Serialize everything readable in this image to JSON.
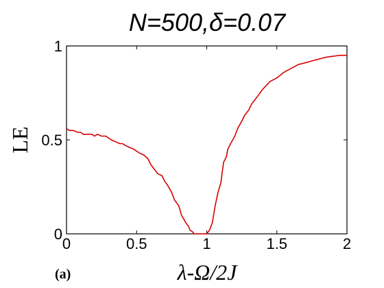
{
  "chart_data": {
    "type": "line",
    "title": "N=500,δ=0.07",
    "xlabel": "λ-Ω/2J",
    "ylabel": "LE",
    "panel_label": "(a)",
    "xlim": [
      0,
      2
    ],
    "ylim": [
      0,
      1
    ],
    "xticks": [
      0,
      0.5,
      1,
      1.5,
      2
    ],
    "xtick_labels": [
      "0",
      "0.5",
      "1",
      "1.5",
      "2"
    ],
    "yticks": [
      0,
      0.5,
      1
    ],
    "ytick_labels": [
      "0",
      "0.5",
      "1"
    ],
    "grid": false,
    "legend": "none",
    "series": [
      {
        "color": "#d40000",
        "x": [
          0,
          0.02,
          0.05,
          0.08,
          0.1,
          0.12,
          0.15,
          0.18,
          0.2,
          0.22,
          0.25,
          0.28,
          0.3,
          0.32,
          0.35,
          0.38,
          0.4,
          0.42,
          0.45,
          0.48,
          0.5,
          0.52,
          0.55,
          0.58,
          0.6,
          0.62,
          0.65,
          0.68,
          0.7,
          0.72,
          0.75,
          0.77,
          0.8,
          0.82,
          0.85,
          0.87,
          0.88,
          0.9,
          0.91,
          0.92,
          0.95,
          0.98,
          1.0,
          1.02,
          1.04,
          1.06,
          1.08,
          1.1,
          1.12,
          1.14,
          1.15,
          1.17,
          1.2,
          1.22,
          1.25,
          1.27,
          1.3,
          1.32,
          1.35,
          1.37,
          1.4,
          1.45,
          1.5,
          1.55,
          1.6,
          1.65,
          1.7,
          1.75,
          1.8,
          1.85,
          1.9,
          1.95,
          2.0
        ],
        "y": [
          0.56,
          0.55,
          0.55,
          0.54,
          0.54,
          0.53,
          0.53,
          0.53,
          0.52,
          0.53,
          0.52,
          0.52,
          0.51,
          0.5,
          0.49,
          0.48,
          0.48,
          0.47,
          0.46,
          0.45,
          0.44,
          0.43,
          0.42,
          0.4,
          0.37,
          0.35,
          0.32,
          0.31,
          0.28,
          0.26,
          0.22,
          0.18,
          0.15,
          0.1,
          0.06,
          0.04,
          0.02,
          0.01,
          0.0,
          0.0,
          0.0,
          0.0,
          0.0,
          0.02,
          0.06,
          0.15,
          0.22,
          0.27,
          0.38,
          0.41,
          0.45,
          0.48,
          0.52,
          0.56,
          0.6,
          0.63,
          0.66,
          0.69,
          0.72,
          0.74,
          0.77,
          0.81,
          0.83,
          0.86,
          0.88,
          0.9,
          0.91,
          0.92,
          0.93,
          0.94,
          0.945,
          0.95,
          0.95
        ]
      }
    ]
  }
}
